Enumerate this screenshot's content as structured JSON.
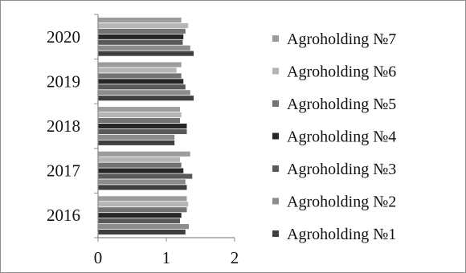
{
  "chart_data": {
    "type": "bar",
    "orientation": "horizontal",
    "categories": [
      "2016",
      "2017",
      "2018",
      "2019",
      "2020"
    ],
    "xlim": [
      0,
      2
    ],
    "xticks": [
      "0",
      "1",
      "2"
    ],
    "series": [
      {
        "name": "Agroholding №1",
        "color": "#3f3f3f",
        "values": [
          1.28,
          1.3,
          1.12,
          1.4,
          1.4
        ]
      },
      {
        "name": "Agroholding №2",
        "color": "#8c8c8c",
        "values": [
          1.33,
          1.28,
          1.12,
          1.35,
          1.35
        ]
      },
      {
        "name": "Agroholding №3",
        "color": "#595959",
        "values": [
          1.2,
          1.38,
          1.3,
          1.28,
          1.24
        ]
      },
      {
        "name": "Agroholding №4",
        "color": "#262626",
        "values": [
          1.22,
          1.25,
          1.3,
          1.25,
          1.25
        ]
      },
      {
        "name": "Agroholding №5",
        "color": "#737373",
        "values": [
          1.3,
          1.22,
          1.2,
          1.22,
          1.28
        ]
      },
      {
        "name": "Agroholding №6",
        "color": "#b5b5b5",
        "values": [
          1.32,
          1.2,
          1.22,
          1.15,
          1.32
        ]
      },
      {
        "name": "Agroholding №7",
        "color": "#9c9c9c",
        "values": [
          1.3,
          1.35,
          1.2,
          1.22,
          1.22
        ]
      }
    ],
    "legend_position": "right",
    "legend_order": "reversed",
    "grid": false
  }
}
